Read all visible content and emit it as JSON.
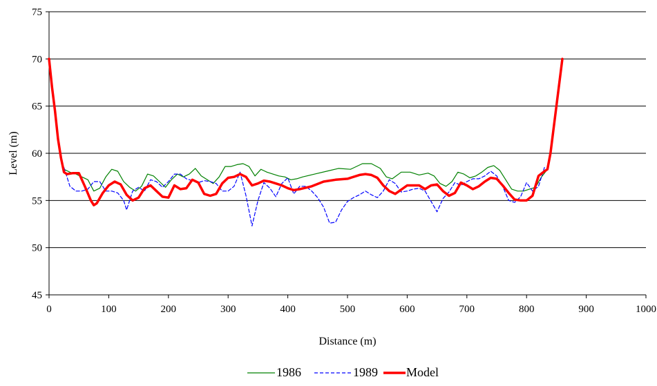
{
  "chart_data": {
    "type": "line",
    "title": "",
    "xlabel": "Distance (m)",
    "ylabel": "Level (m)",
    "xlim": [
      0,
      1000
    ],
    "ylim": [
      45,
      75
    ],
    "xticks": [
      "0",
      "100",
      "200",
      "300",
      "400",
      "500",
      "600",
      "700",
      "800",
      "900",
      "1000"
    ],
    "yticks": [
      "45",
      "50",
      "55",
      "60",
      "65",
      "70",
      "75"
    ],
    "grid": "horizontal",
    "legend_position": "bottom",
    "series": [
      {
        "name": "1986",
        "color": "#008000",
        "style": "solid",
        "x": [
          25,
          35,
          45,
          55,
          65,
          75,
          85,
          95,
          105,
          115,
          125,
          135,
          145,
          155,
          165,
          175,
          185,
          195,
          205,
          215,
          225,
          235,
          245,
          255,
          265,
          275,
          285,
          295,
          305,
          315,
          325,
          335,
          345,
          355,
          365,
          375,
          385,
          395,
          405,
          415,
          425,
          445,
          465,
          485,
          505,
          525,
          540,
          555,
          565,
          575,
          590,
          605,
          620,
          635,
          645,
          655,
          665,
          675,
          685,
          695,
          705,
          715,
          725,
          735,
          745,
          755,
          765,
          775,
          785,
          795,
          805,
          815,
          825,
          835
        ],
        "y": [
          58.3,
          58.0,
          57.8,
          57.5,
          57.2,
          56.0,
          56.3,
          57.5,
          58.3,
          58.1,
          57.0,
          56.4,
          56.0,
          56.5,
          57.8,
          57.6,
          57.0,
          56.4,
          57.2,
          57.8,
          57.5,
          57.8,
          58.4,
          57.6,
          57.2,
          56.8,
          57.5,
          58.6,
          58.6,
          58.8,
          58.9,
          58.6,
          57.6,
          58.3,
          58.0,
          57.8,
          57.6,
          57.5,
          57.2,
          57.3,
          57.5,
          57.8,
          58.1,
          58.4,
          58.3,
          58.9,
          58.9,
          58.4,
          57.5,
          57.3,
          58.0,
          58.0,
          57.7,
          57.9,
          57.6,
          56.8,
          56.5,
          57.0,
          58.0,
          57.8,
          57.4,
          57.6,
          58.0,
          58.5,
          58.7,
          58.2,
          57.2,
          56.2,
          56.0,
          56.0,
          56.2,
          56.4,
          57.5,
          58.3
        ]
      },
      {
        "name": "1989",
        "color": "#0000FF",
        "style": "dashed",
        "x": [
          25,
          35,
          45,
          55,
          65,
          75,
          85,
          95,
          105,
          115,
          125,
          130,
          140,
          150,
          160,
          170,
          180,
          190,
          200,
          210,
          220,
          230,
          240,
          250,
          260,
          270,
          280,
          290,
          300,
          310,
          320,
          330,
          340,
          350,
          360,
          370,
          380,
          390,
          400,
          410,
          420,
          430,
          440,
          450,
          460,
          470,
          480,
          490,
          500,
          510,
          520,
          530,
          540,
          550,
          560,
          570,
          580,
          590,
          600,
          610,
          620,
          630,
          640,
          650,
          660,
          670,
          680,
          690,
          700,
          710,
          720,
          730,
          740,
          750,
          760,
          770,
          780,
          790,
          800,
          810,
          820,
          830
        ],
        "y": [
          58.5,
          56.5,
          56.0,
          56.0,
          56.2,
          57.0,
          57.0,
          56.0,
          56.0,
          55.8,
          55.0,
          54.0,
          56.0,
          56.4,
          56.0,
          57.2,
          57.0,
          56.4,
          57.0,
          57.8,
          57.8,
          57.3,
          57.1,
          56.9,
          57.1,
          57.0,
          56.8,
          56.0,
          56.0,
          56.5,
          58.0,
          55.5,
          52.3,
          55.0,
          56.9,
          56.3,
          55.4,
          56.8,
          57.4,
          55.7,
          56.5,
          56.5,
          56.0,
          55.3,
          54.3,
          52.6,
          52.7,
          54.0,
          54.9,
          55.3,
          55.6,
          56.0,
          55.6,
          55.3,
          56.0,
          57.2,
          56.8,
          55.9,
          56.0,
          56.2,
          56.3,
          56.0,
          54.9,
          53.8,
          55.2,
          55.9,
          56.9,
          56.6,
          57.0,
          57.3,
          57.3,
          57.6,
          58.1,
          57.6,
          56.5,
          55.0,
          54.8,
          55.4,
          56.9,
          56.0,
          56.5,
          58.5
        ]
      },
      {
        "name": "Model",
        "color": "#FF0000",
        "style": "solid-thick",
        "x": [
          0,
          5,
          10,
          15,
          20,
          25,
          30,
          40,
          50,
          60,
          70,
          75,
          80,
          90,
          100,
          110,
          120,
          130,
          140,
          150,
          160,
          170,
          180,
          190,
          200,
          210,
          220,
          230,
          240,
          250,
          260,
          270,
          280,
          290,
          300,
          310,
          320,
          330,
          340,
          350,
          360,
          370,
          380,
          390,
          400,
          410,
          420,
          440,
          460,
          480,
          500,
          520,
          530,
          540,
          550,
          560,
          570,
          580,
          600,
          620,
          630,
          640,
          650,
          660,
          670,
          680,
          690,
          700,
          710,
          720,
          730,
          740,
          750,
          760,
          770,
          780,
          790,
          800,
          810,
          820,
          830,
          835,
          840,
          845,
          850,
          855,
          860
        ],
        "y": [
          70.0,
          67.0,
          64.5,
          61.5,
          59.5,
          58.0,
          57.8,
          57.9,
          57.9,
          56.5,
          55.0,
          54.5,
          54.7,
          55.8,
          56.6,
          57.0,
          56.7,
          55.6,
          55.0,
          55.3,
          56.3,
          56.6,
          56.0,
          55.4,
          55.3,
          56.6,
          56.2,
          56.3,
          57.2,
          56.9,
          55.7,
          55.5,
          55.7,
          56.8,
          57.4,
          57.5,
          57.8,
          57.5,
          56.6,
          56.8,
          57.1,
          57.0,
          56.8,
          56.6,
          56.3,
          56.1,
          56.2,
          56.5,
          57.0,
          57.2,
          57.3,
          57.7,
          57.8,
          57.7,
          57.4,
          56.6,
          56.0,
          55.7,
          56.6,
          56.6,
          56.2,
          56.6,
          56.7,
          56.0,
          55.5,
          55.8,
          56.9,
          56.6,
          56.2,
          56.5,
          57.0,
          57.4,
          57.3,
          56.6,
          55.8,
          55.1,
          55.0,
          55.0,
          55.5,
          57.6,
          58.1,
          58.3,
          60.0,
          62.5,
          65.0,
          67.5,
          70.0
        ]
      }
    ]
  }
}
